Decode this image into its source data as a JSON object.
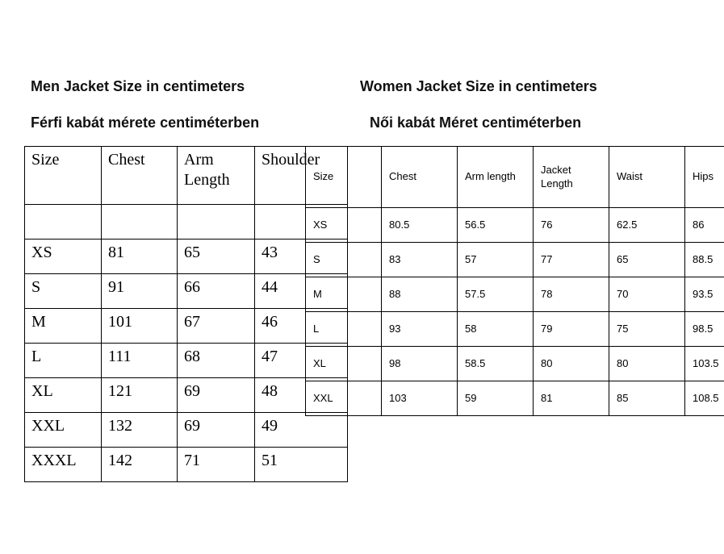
{
  "men_section": {
    "title_en": "Men Jacket Size in centimeters",
    "title_hu": "Férfi kabát mérete centiméterben",
    "table": {
      "headers": [
        "Size",
        "Chest",
        "Arm Length",
        "Shoulder"
      ],
      "rows": [
        [
          "",
          "",
          "",
          ""
        ],
        [
          "XS",
          "81",
          "65",
          "43"
        ],
        [
          "S",
          "91",
          "66",
          "44"
        ],
        [
          "M",
          "101",
          "67",
          "46"
        ],
        [
          "L",
          "111",
          "68",
          "47"
        ],
        [
          "XL",
          "121",
          "69",
          "48"
        ],
        [
          "XXL",
          "132",
          "69",
          "49"
        ],
        [
          "XXXL",
          "142",
          "71",
          "51"
        ]
      ]
    }
  },
  "women_section": {
    "title_en": "Women Jacket Size in centimeters",
    "title_hu": "Női kabát Méret centiméterben",
    "table": {
      "headers": [
        "Size",
        "Chest",
        "Arm length",
        "Jacket Length",
        "Waist",
        "Hips"
      ],
      "rows": [
        [
          "XS",
          "80.5",
          "56.5",
          "76",
          "62.5",
          "86"
        ],
        [
          "S",
          "83",
          "57",
          "77",
          "65",
          "88.5"
        ],
        [
          "M",
          "88",
          "57.5",
          "78",
          "70",
          "93.5"
        ],
        [
          "L",
          "93",
          "58",
          "79",
          "75",
          "98.5"
        ],
        [
          "XL",
          "98",
          "58.5",
          "80",
          "80",
          "103.5"
        ],
        [
          "XXL",
          "103",
          "59",
          "81",
          "85",
          "108.5"
        ]
      ]
    }
  },
  "colors": {
    "background": "#ffffff",
    "text": "#000000",
    "border": "#000000"
  }
}
